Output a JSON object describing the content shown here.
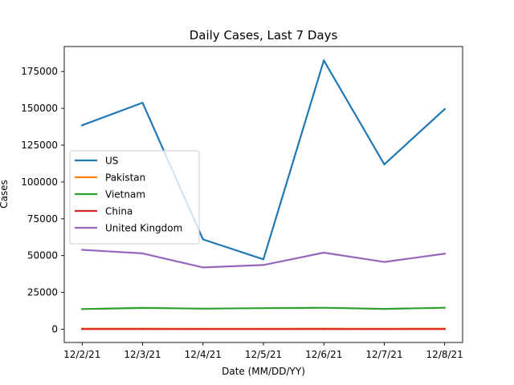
{
  "chart_data": {
    "type": "line",
    "title": "Daily Cases, Last 7 Days",
    "xlabel": "Date (MM/DD/YY)",
    "ylabel": "Cases",
    "categories": [
      "12/2/21",
      "12/3/21",
      "12/4/21",
      "12/5/21",
      "12/6/21",
      "12/7/21",
      "12/8/21"
    ],
    "ylim": [
      -9000,
      192000
    ],
    "yticks": [
      0,
      25000,
      50000,
      75000,
      100000,
      125000,
      150000,
      175000
    ],
    "ytick_labels": [
      "0",
      "25000",
      "50000",
      "75000",
      "100000",
      "125000",
      "150000",
      "175000"
    ],
    "grid": false,
    "legend_position": "center-left",
    "series": [
      {
        "name": "US",
        "color": "#1f77b4",
        "values": [
          138500,
          153800,
          61000,
          47500,
          182600,
          112000,
          149500
        ]
      },
      {
        "name": "Pakistan",
        "color": "#ff7f0e",
        "values": [
          400,
          450,
          300,
          350,
          400,
          380,
          420
        ]
      },
      {
        "name": "Vietnam",
        "color": "#2ca02c",
        "values": [
          13700,
          14500,
          14000,
          14300,
          14600,
          13800,
          14600
        ]
      },
      {
        "name": "China",
        "color": "#d62728",
        "values": [
          100,
          120,
          90,
          80,
          110,
          100,
          95
        ]
      },
      {
        "name": "United Kingdom",
        "color": "#9467bd",
        "values": [
          53900,
          51500,
          42000,
          43600,
          52000,
          45700,
          51300
        ]
      }
    ]
  }
}
